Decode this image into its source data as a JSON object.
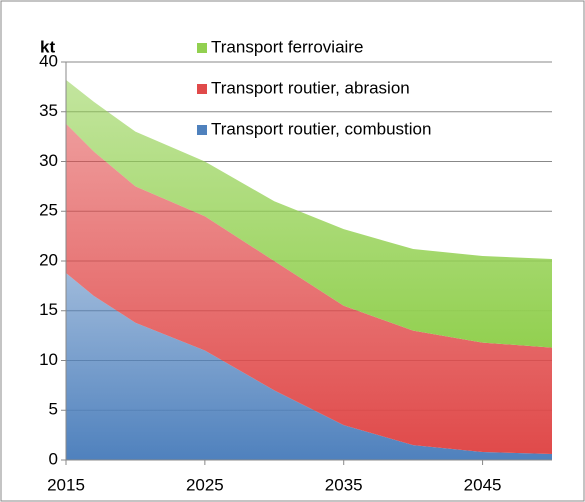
{
  "chart_data": {
    "type": "stacked_area",
    "y_axis_label": "kt",
    "x": [
      2015,
      2017,
      2020,
      2025,
      2030,
      2035,
      2040,
      2045,
      2050
    ],
    "series": [
      {
        "name": "Transport routier, combustion",
        "color": "#4f81bd",
        "values": [
          18.8,
          16.5,
          13.8,
          11,
          7,
          3.5,
          1.5,
          0.8,
          0.6
        ]
      },
      {
        "name": "Transport routier, abrasion",
        "color": "#e04a4a",
        "values": [
          15,
          14.5,
          13.7,
          13.5,
          13,
          12,
          11.5,
          11,
          10.7
        ]
      },
      {
        "name": "Transport ferroviaire",
        "color": "#92d050",
        "values": [
          4.4,
          5,
          5.5,
          5.5,
          6,
          7.7,
          8.2,
          8.7,
          8.9
        ]
      }
    ],
    "xlim": [
      2015,
      2050
    ],
    "xticks": [
      2015,
      2025,
      2035,
      2045
    ],
    "ylim": [
      0,
      40
    ],
    "yticks": [
      0,
      5,
      10,
      15,
      20,
      25,
      30,
      35,
      40
    ],
    "grid": true
  }
}
